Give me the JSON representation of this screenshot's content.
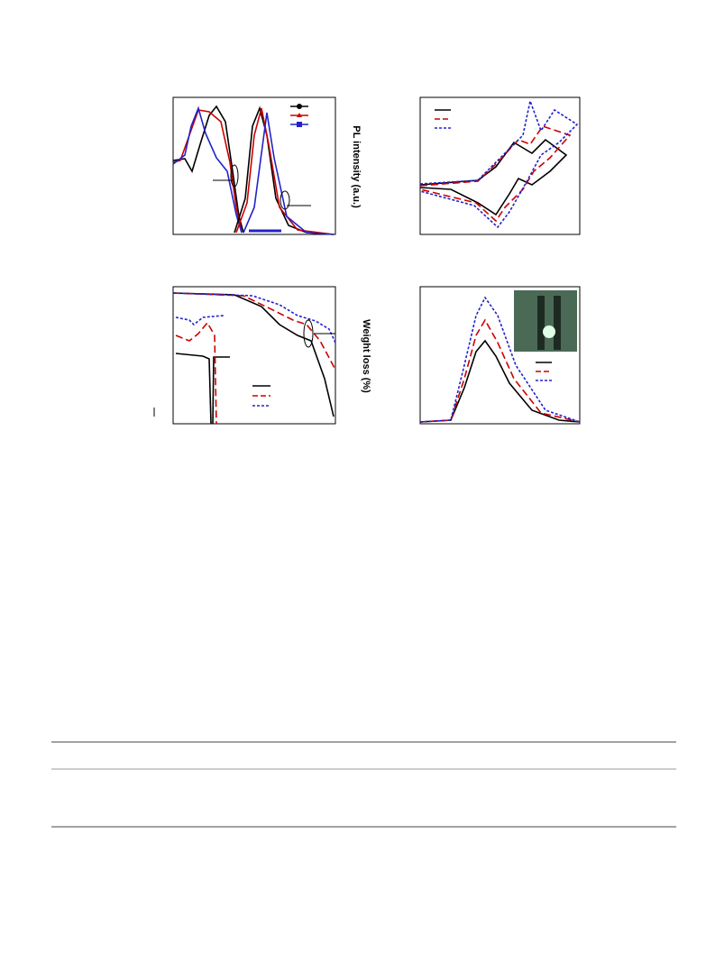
{
  "figure": {
    "panel_labels": [
      "PL intensity (a.u.)",
      "Weight loss (%)"
    ]
  }
}
